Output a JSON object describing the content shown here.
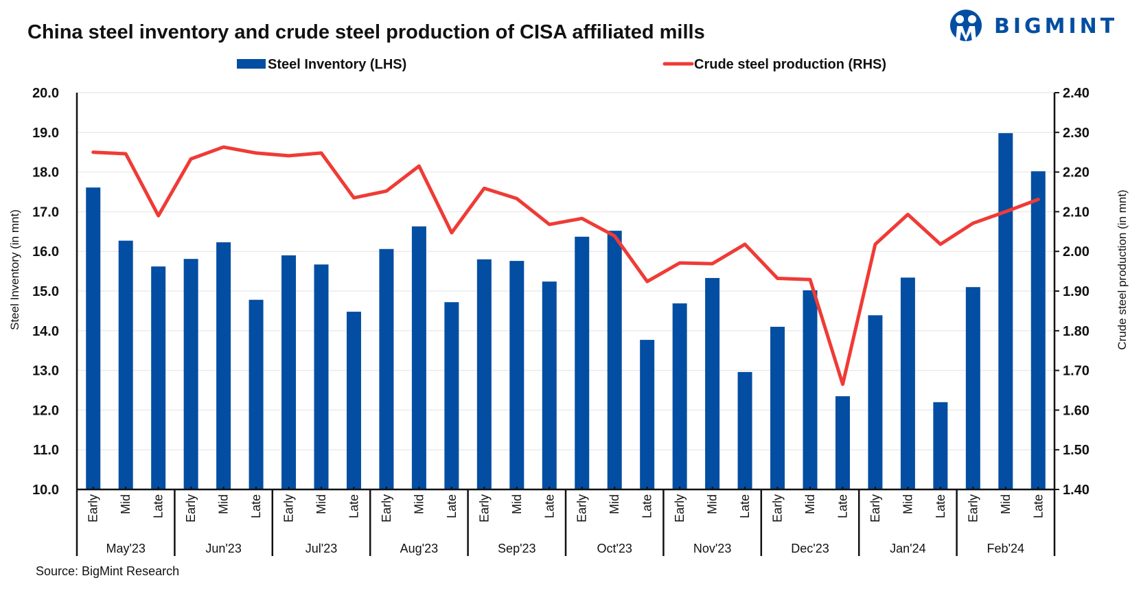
{
  "brand": {
    "name": "BIGMINT",
    "color": "#034EA2"
  },
  "source": "Source: BigMint Research",
  "chart_data": {
    "type": "bar+line",
    "title": "China steel inventory and crude steel production of CISA affiliated mills",
    "legend": {
      "position": "top-center",
      "items": [
        {
          "label": "Steel Inventory (LHS)",
          "kind": "bar",
          "color": "#034EA2"
        },
        {
          "label": "Crude steel production (RHS)",
          "kind": "line",
          "color": "#EF3B36"
        }
      ]
    },
    "groups": [
      "May'23",
      "Jun'23",
      "Jul'23",
      "Aug'23",
      "Sep'23",
      "Oct'23",
      "Nov'23",
      "Dec'23",
      "Jan'24",
      "Feb'24"
    ],
    "subcategories": [
      "Early",
      "Mid",
      "Late"
    ],
    "y_left": {
      "label": "Steel Inventory (in mnt)",
      "range": [
        10.0,
        20.0
      ],
      "ticks": [
        "10.0",
        "11.0",
        "12.0",
        "13.0",
        "14.0",
        "15.0",
        "16.0",
        "17.0",
        "18.0",
        "19.0",
        "20.0"
      ]
    },
    "y_right": {
      "label": "Crude steel production (in mnt)",
      "range": [
        1.4,
        2.4
      ],
      "ticks": [
        "1.40",
        "1.50",
        "1.60",
        "1.70",
        "1.80",
        "1.90",
        "2.00",
        "2.10",
        "2.20",
        "2.30",
        "2.40"
      ]
    },
    "grid": true,
    "series": [
      {
        "name": "Steel Inventory (LHS)",
        "type": "bar",
        "axis": "left",
        "values": [
          17.61,
          16.27,
          15.62,
          15.81,
          16.23,
          14.78,
          15.9,
          15.67,
          14.48,
          16.06,
          16.63,
          14.72,
          15.8,
          15.76,
          15.24,
          16.37,
          16.52,
          13.77,
          14.69,
          15.33,
          12.96,
          14.1,
          15.02,
          12.35,
          14.39,
          15.34,
          12.2,
          15.1,
          18.98,
          18.02
        ]
      },
      {
        "name": "Crude steel production (RHS)",
        "type": "line",
        "axis": "right",
        "values": [
          2.25,
          2.246,
          2.09,
          2.233,
          2.263,
          2.248,
          2.241,
          2.248,
          2.135,
          2.152,
          2.215,
          2.047,
          2.159,
          2.133,
          2.068,
          2.083,
          2.039,
          1.924,
          1.971,
          1.969,
          2.018,
          1.932,
          1.929,
          1.665,
          2.018,
          2.093,
          2.018,
          2.071,
          2.1,
          2.131
        ]
      }
    ]
  }
}
